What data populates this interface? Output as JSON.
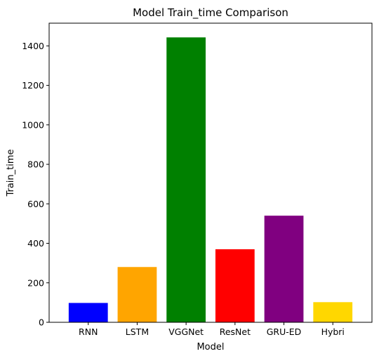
{
  "chart_data": {
    "type": "bar",
    "title": "Model Train_time Comparison",
    "xlabel": "Model",
    "ylabel": "Train_time",
    "categories": [
      "RNN",
      "LSTM",
      "VGGNet",
      "ResNet",
      "GRU-ED",
      "Hybri"
    ],
    "values": [
      98,
      280,
      1443,
      370,
      540,
      102
    ],
    "colors": [
      "#0000ff",
      "#ffa500",
      "#008000",
      "#ff0000",
      "#800080",
      "#ffd700"
    ],
    "ylim": [
      0,
      1515
    ],
    "yticks": [
      0,
      200,
      400,
      600,
      800,
      1000,
      1200,
      1400
    ],
    "grid": false,
    "legend": "none"
  }
}
